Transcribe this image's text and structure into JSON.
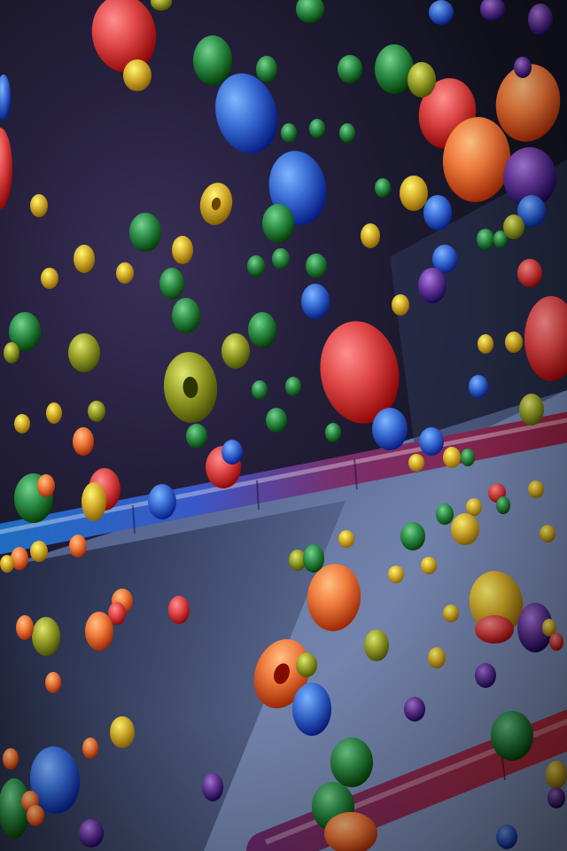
{
  "scene": {
    "subject": "candy",
    "palette": {
      "red": "#e04848",
      "orange": "#ef7a3c",
      "yellow": "#d8b22e",
      "olive": "#9aa22a",
      "green": "#2f8f4a",
      "blue": "#3b6fd6",
      "purple": "#6a3aa0",
      "floor": "#7f8fb4",
      "backdrop": "#2a2440"
    }
  }
}
